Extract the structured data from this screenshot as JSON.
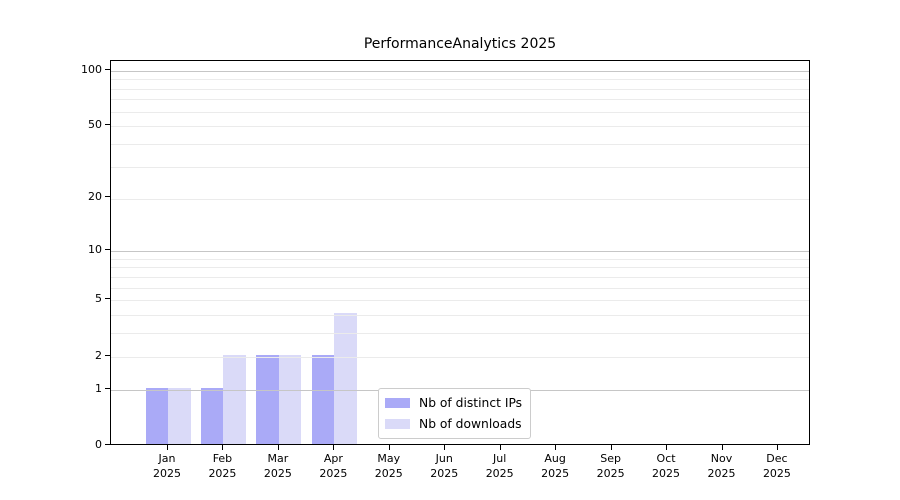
{
  "figure": {
    "title": "PerformanceAnalytics 2025"
  },
  "chart_data": {
    "type": "bar",
    "title": "PerformanceAnalytics 2025",
    "categories": [
      "Jan 2025",
      "Feb 2025",
      "Mar 2025",
      "Apr 2025",
      "May 2025",
      "Jun 2025",
      "Jul 2025",
      "Aug 2025",
      "Sep 2025",
      "Oct 2025",
      "Nov 2025",
      "Dec 2025"
    ],
    "x_tick_months": [
      "Jan",
      "Feb",
      "Mar",
      "Apr",
      "May",
      "Jun",
      "Jul",
      "Aug",
      "Sep",
      "Oct",
      "Nov",
      "Dec"
    ],
    "x_tick_year": "2025",
    "series": [
      {
        "name": "Nb of distinct IPs",
        "color": "#aaaaf7",
        "values": [
          1,
          1,
          2,
          2,
          0,
          0,
          0,
          0,
          0,
          0,
          0,
          0
        ]
      },
      {
        "name": "Nb of downloads",
        "color": "#dadaf8",
        "values": [
          1,
          2,
          2,
          4,
          0,
          0,
          0,
          0,
          0,
          0,
          0,
          0
        ]
      }
    ],
    "xlabel": "",
    "ylabel": "",
    "yscale": "log10(1+y)",
    "ylim": [
      0,
      113
    ],
    "yticks": [
      0,
      1,
      2,
      5,
      10,
      20,
      50,
      100
    ],
    "grid": true,
    "grid_major_values": [
      1,
      10,
      100
    ],
    "grid_minor_values": [
      2,
      3,
      4,
      5,
      6,
      7,
      8,
      9,
      20,
      30,
      40,
      50,
      60,
      70,
      80,
      90
    ],
    "legend_position": "lower center"
  },
  "colors": {
    "bar_distinct_ips": "#aaaaf7",
    "bar_downloads": "#dadaf8",
    "grid_minor": "#ebebeb",
    "grid_major": "#c6c6c6",
    "spine": "#000000",
    "legend_border": "#cccccc",
    "background": "#ffffff",
    "text": "#000000"
  }
}
